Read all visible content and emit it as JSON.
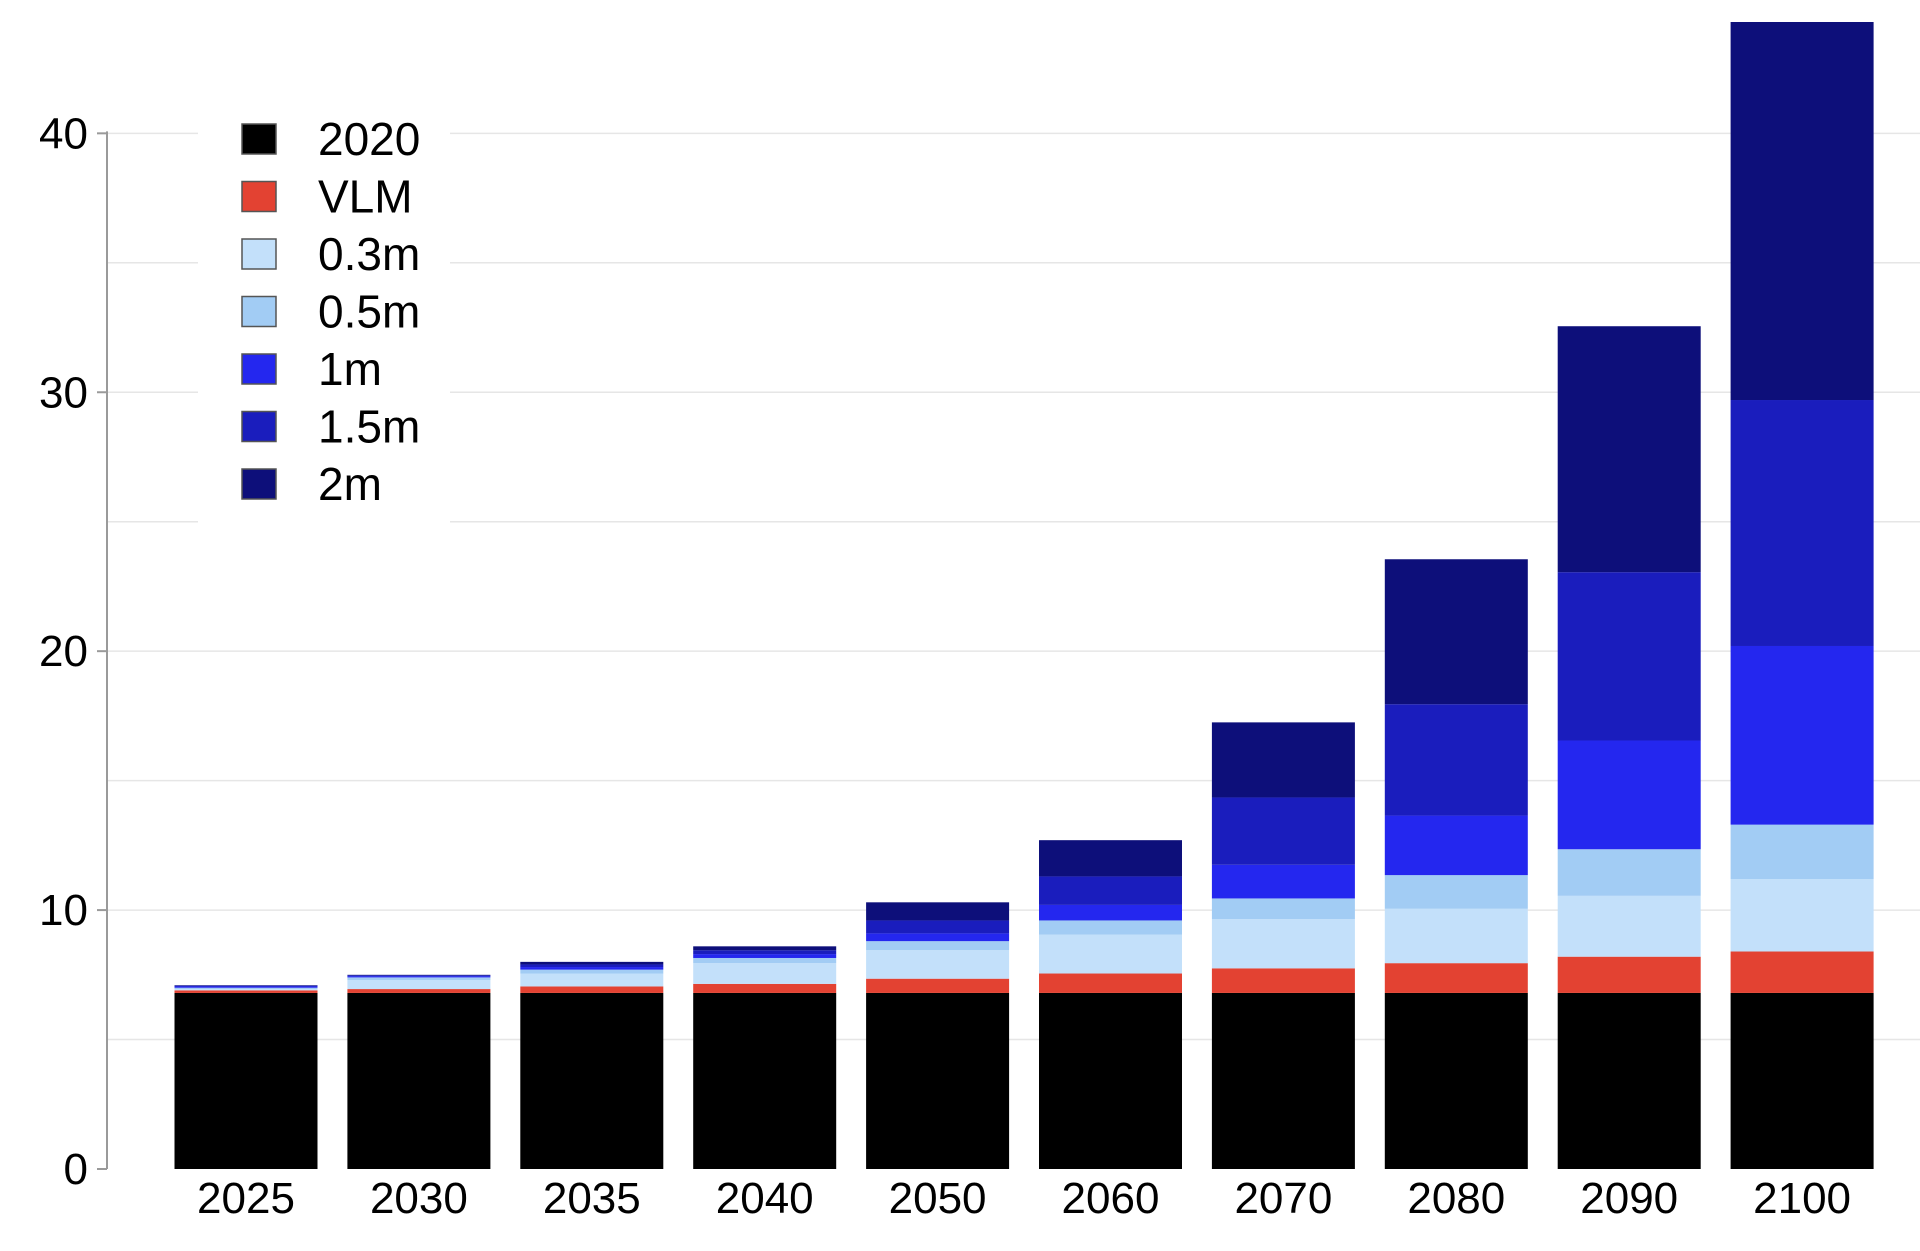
{
  "chart_data": {
    "type": "bar",
    "stacked": true,
    "categories": [
      "2025",
      "2030",
      "2035",
      "2040",
      "2050",
      "2060",
      "2070",
      "2080",
      "2090",
      "2100"
    ],
    "series": [
      {
        "name": "2020",
        "color": "#000000",
        "values": [
          6.8,
          6.8,
          6.8,
          6.8,
          6.8,
          6.8,
          6.8,
          6.8,
          6.8,
          6.8
        ]
      },
      {
        "name": "VLM",
        "color": "#e34232",
        "values": [
          0.1,
          0.15,
          0.25,
          0.35,
          0.55,
          0.75,
          0.95,
          1.15,
          1.4,
          1.6
        ]
      },
      {
        "name": "0.3m",
        "color": "#c3e0fa",
        "values": [
          0.05,
          0.35,
          0.5,
          0.8,
          1.1,
          1.5,
          1.9,
          2.1,
          2.35,
          2.8
        ]
      },
      {
        "name": "0.5m",
        "color": "#a2ccf4",
        "values": [
          0.05,
          0.1,
          0.15,
          0.2,
          0.35,
          0.55,
          0.8,
          1.3,
          1.8,
          2.1
        ]
      },
      {
        "name": "1m",
        "color": "#2427ef",
        "values": [
          0.05,
          0.05,
          0.1,
          0.15,
          0.3,
          0.6,
          1.3,
          2.3,
          4.2,
          6.9
        ]
      },
      {
        "name": "1.5m",
        "color": "#1a1dbd",
        "values": [
          0.03,
          0.03,
          0.1,
          0.15,
          0.5,
          1.1,
          2.6,
          4.3,
          6.5,
          9.5
        ]
      },
      {
        "name": "2m",
        "color": "#0d0f7a",
        "values": [
          0.02,
          0.02,
          0.1,
          0.15,
          0.7,
          1.4,
          2.9,
          5.6,
          9.5,
          14.6
        ]
      }
    ],
    "ylim": [
      0,
      44.3
    ],
    "yticks": [
      0,
      10,
      20,
      30,
      40
    ],
    "grid": true,
    "legend_position": "top-left",
    "title": "",
    "xlabel": "",
    "ylabel": ""
  }
}
